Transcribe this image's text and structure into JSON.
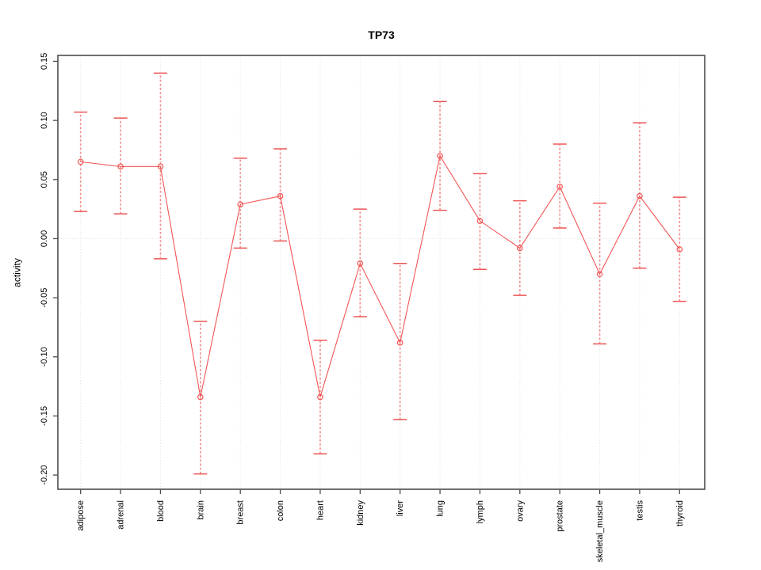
{
  "chart_data": {
    "type": "line",
    "title": "TP73",
    "xlabel": "",
    "ylabel": "activity",
    "legend": "none",
    "grid": "dotted vertical line at each category; dotted horizontal line at 0",
    "marker": "open-circle",
    "error_bars": true,
    "categories": [
      "adipose",
      "adrenal",
      "blood",
      "brain",
      "breast",
      "colon",
      "heart",
      "kidney",
      "liver",
      "lung",
      "lymph",
      "ovary",
      "prostate",
      "skeletal_muscle",
      "testis",
      "thyroid"
    ],
    "series": [
      {
        "name": "TP73 activity",
        "values": [
          0.065,
          0.061,
          0.061,
          -0.134,
          0.029,
          0.036,
          -0.134,
          -0.021,
          -0.088,
          0.07,
          0.015,
          -0.008,
          0.044,
          -0.03,
          0.036,
          -0.009
        ],
        "lower": [
          0.023,
          0.021,
          -0.017,
          -0.199,
          -0.008,
          -0.002,
          -0.182,
          -0.066,
          -0.153,
          0.024,
          -0.026,
          -0.048,
          0.009,
          -0.089,
          -0.025,
          -0.053
        ],
        "upper": [
          0.107,
          0.102,
          0.14,
          -0.07,
          0.068,
          0.076,
          -0.086,
          0.025,
          -0.021,
          0.116,
          0.055,
          0.032,
          0.08,
          0.03,
          0.098,
          0.035
        ]
      }
    ],
    "ylim": [
      -0.212,
      0.155
    ],
    "ytick_labels": [
      "0.15",
      "0.10",
      "0.05",
      "0.00",
      "-0.05",
      "-0.10",
      "-0.15",
      "-0.20"
    ],
    "zero_line": 0,
    "colors": {
      "series": "#f25555",
      "error_line": "#f58f8f",
      "error_cap": "#ee5555",
      "grid": "#dedede",
      "axis_box": "#4d4d4d",
      "text": "#000000"
    }
  }
}
